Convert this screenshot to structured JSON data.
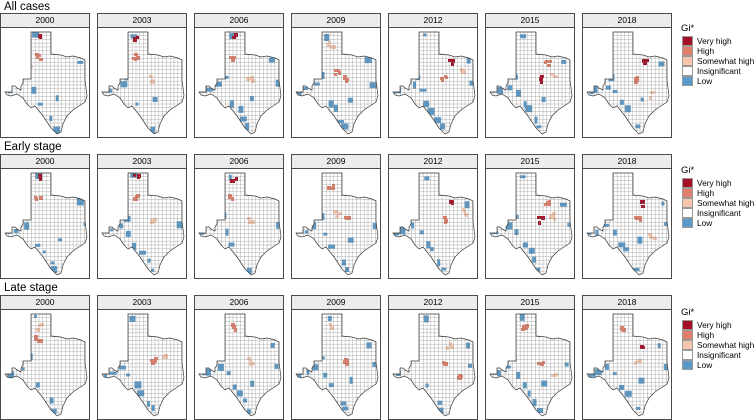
{
  "rows": [
    {
      "title": "All cases",
      "years": [
        "2000",
        "2003",
        "2006",
        "2009",
        "2012",
        "2015",
        "2018"
      ],
      "legend_title": "Gi*",
      "hotspots": [
        [
          {
            "county": "panhandle-north",
            "level": "very_high"
          },
          {
            "county": "south-plains",
            "level": "high"
          },
          {
            "county": "west-texas",
            "level": "somewhat_high"
          }
        ],
        [
          {
            "county": "panhandle-north",
            "level": "very_high"
          },
          {
            "county": "south-plains",
            "level": "high"
          },
          {
            "county": "central",
            "level": "somewhat_high"
          }
        ],
        [
          {
            "county": "panhandle-north",
            "level": "very_high"
          },
          {
            "county": "south-plains",
            "level": "high"
          },
          {
            "county": "central",
            "level": "somewhat_high"
          }
        ],
        [
          {
            "county": "central",
            "level": "high"
          },
          {
            "county": "central-west",
            "level": "high"
          },
          {
            "county": "panhandle",
            "level": "somewhat_high"
          }
        ],
        [
          {
            "county": "north-central",
            "level": "very_high"
          },
          {
            "county": "central",
            "level": "high"
          },
          {
            "county": "east",
            "level": "somewhat_high"
          }
        ],
        [
          {
            "county": "central",
            "level": "very_high"
          },
          {
            "county": "north-central",
            "level": "high"
          },
          {
            "county": "central-east",
            "level": "somewhat_high"
          }
        ],
        [
          {
            "county": "north-central",
            "level": "very_high"
          },
          {
            "county": "central",
            "level": "high"
          },
          {
            "county": "southeast",
            "level": "somewhat_high"
          }
        ]
      ]
    },
    {
      "title": "Early stage",
      "years": [
        "2000",
        "2003",
        "2006",
        "2009",
        "2012",
        "2015",
        "2018"
      ],
      "legend_title": "Gi*",
      "hotspots": [
        [
          {
            "county": "panhandle-north",
            "level": "very_high"
          },
          {
            "county": "south-plains",
            "level": "high"
          },
          {
            "county": "west-texas",
            "level": "somewhat_high"
          }
        ],
        [
          {
            "county": "panhandle-north",
            "level": "very_high"
          },
          {
            "county": "south-plains",
            "level": "high"
          },
          {
            "county": "central",
            "level": "somewhat_high"
          }
        ],
        [
          {
            "county": "panhandle-north",
            "level": "very_high"
          },
          {
            "county": "south-plains",
            "level": "high"
          },
          {
            "county": "central",
            "level": "somewhat_high"
          }
        ],
        [
          {
            "county": "central",
            "level": "high"
          },
          {
            "county": "panhandle",
            "level": "high"
          },
          {
            "county": "central-west",
            "level": "somewhat_high"
          }
        ],
        [
          {
            "county": "north-central",
            "level": "very_high"
          },
          {
            "county": "central",
            "level": "high"
          },
          {
            "county": "east",
            "level": "somewhat_high"
          }
        ],
        [
          {
            "county": "central",
            "level": "very_high"
          },
          {
            "county": "north-central",
            "level": "high"
          },
          {
            "county": "central-east",
            "level": "somewhat_high"
          }
        ],
        [
          {
            "county": "north-central",
            "level": "very_high"
          },
          {
            "county": "central",
            "level": "high"
          },
          {
            "county": "southeast",
            "level": "somewhat_high"
          }
        ]
      ]
    },
    {
      "title": "Late stage",
      "years": [
        "2000",
        "2003",
        "2006",
        "2009",
        "2012",
        "2015",
        "2018"
      ],
      "legend_title": "Gi*",
      "hotspots": [
        [
          {
            "county": "south-plains",
            "level": "high"
          },
          {
            "county": "panhandle",
            "level": "somewhat_high"
          }
        ],
        [
          {
            "county": "central",
            "level": "high"
          },
          {
            "county": "central-east",
            "level": "somewhat_high"
          }
        ],
        [
          {
            "county": "panhandle",
            "level": "high"
          },
          {
            "county": "central",
            "level": "somewhat_high"
          }
        ],
        [
          {
            "county": "central",
            "level": "high"
          },
          {
            "county": "panhandle",
            "level": "somewhat_high"
          }
        ],
        [
          {
            "county": "southeast",
            "level": "high"
          },
          {
            "county": "central",
            "level": "high"
          },
          {
            "county": "north-central",
            "level": "somewhat_high"
          }
        ],
        [
          {
            "county": "panhandle",
            "level": "high"
          },
          {
            "county": "central",
            "level": "high"
          },
          {
            "county": "southeast",
            "level": "somewhat_high"
          }
        ],
        [
          {
            "county": "north-central",
            "level": "very_high"
          },
          {
            "county": "panhandle",
            "level": "high"
          },
          {
            "county": "central",
            "level": "somewhat_high"
          }
        ]
      ]
    }
  ],
  "legend": {
    "title": "Gi*",
    "items": [
      {
        "key": "very_high",
        "label": "Very high",
        "color": "#a50f26"
      },
      {
        "key": "high",
        "label": "High",
        "color": "#e0806c"
      },
      {
        "key": "somewhat_high",
        "label": "Somewhat high",
        "color": "#f4c6ae"
      },
      {
        "key": "insignificant",
        "label": "Insignificant",
        "color": "#ffffff"
      },
      {
        "key": "low",
        "label": "Low",
        "color": "#5b9ac8"
      }
    ]
  },
  "map_colors": {
    "county_border": "#7a7a7a",
    "state_border": "#3a3a3a",
    "background": "#ffffff"
  }
}
